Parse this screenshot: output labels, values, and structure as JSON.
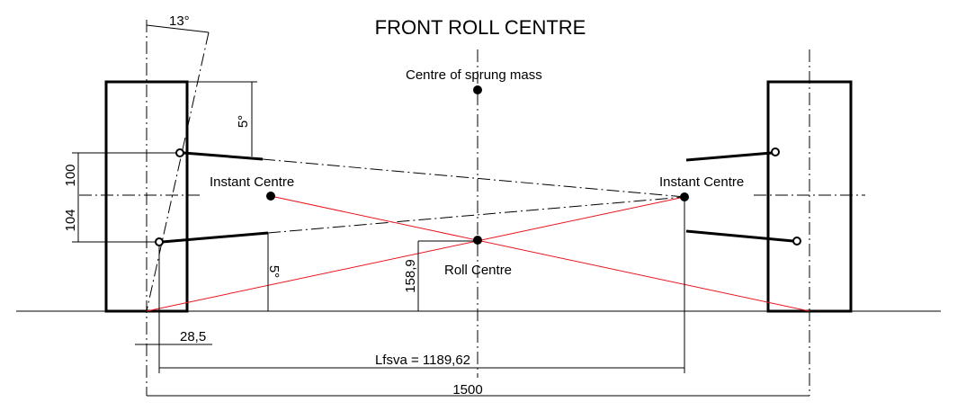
{
  "title": "FRONT ROLL CENTRE",
  "labels": {
    "centre_of_sprung_mass": "Centre of sprung mass",
    "instant_centre_left": "Instant Centre",
    "instant_centre_right": "Instant Centre",
    "roll_centre": "Roll Centre"
  },
  "dimensions": {
    "kingpin_angle": "13°",
    "upper_arm_angle": "5°",
    "lower_arm_angle": "5°",
    "upper_height": "100",
    "lower_height": "104",
    "roll_centre_height": "158,9",
    "scrub_radius": "28,5",
    "lfsva": "Lfsva = 1189,62",
    "track_width": "1500"
  },
  "colors": {
    "lines": "#000000",
    "force_lines": "#e8141c"
  }
}
